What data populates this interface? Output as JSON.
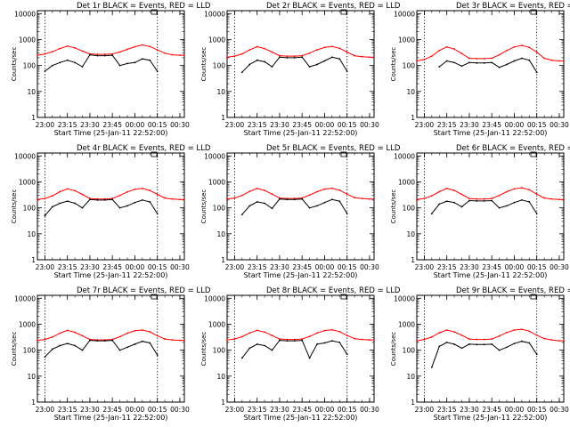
{
  "figure": {
    "xlabel": "Start Time (25-Jan-11 22:52:00)",
    "ylabel": "Counts/sec",
    "x_tick_labels": [
      "23:00",
      "23:15",
      "23:30",
      "23:45",
      "00:00",
      "00:15",
      "00:30"
    ],
    "y_tick_labels": [
      "1",
      "10",
      "100",
      "1000",
      "10000"
    ],
    "colors": {
      "events": "#000000",
      "lld": "#ff0000",
      "axes": "#000000"
    }
  },
  "chart_data": [
    {
      "type": "line",
      "title": "Det 1r BLACK = Events, RED = LLD",
      "x": [
        "22:55",
        "23:00",
        "23:05",
        "23:10",
        "23:15",
        "23:20",
        "23:25",
        "23:30",
        "23:35",
        "23:40",
        "23:45",
        "23:50",
        "23:55",
        "00:00",
        "00:05",
        "00:10",
        "00:15",
        "00:20",
        "00:25",
        "00:30",
        "00:33"
      ],
      "ylim": [
        1,
        13000
      ],
      "yscale": "log",
      "series": [
        {
          "values": [
            250,
            280,
            340,
            450,
            560,
            480,
            360,
            280,
            270,
            270,
            280,
            330,
            420,
            530,
            620,
            540,
            400,
            300,
            260,
            250,
            250
          ]
        },
        {
          "values": [
            null,
            60,
            100,
            130,
            160,
            130,
            90,
            260,
            240,
            240,
            250,
            100,
            120,
            130,
            180,
            160,
            60,
            null,
            null,
            null,
            null
          ]
        }
      ]
    },
    {
      "type": "line",
      "title": "Det 2r BLACK = Events, RED = LLD",
      "x": [
        "22:55",
        "23:00",
        "23:05",
        "23:10",
        "23:15",
        "23:20",
        "23:25",
        "23:30",
        "23:35",
        "23:40",
        "23:45",
        "23:50",
        "23:55",
        "00:00",
        "00:05",
        "00:10",
        "00:15",
        "00:20",
        "00:25",
        "00:30",
        "00:33"
      ],
      "ylim": [
        1,
        13000
      ],
      "yscale": "log",
      "series": [
        {
          "values": [
            210,
            230,
            280,
            400,
            530,
            450,
            330,
            240,
            230,
            230,
            240,
            300,
            400,
            500,
            540,
            460,
            330,
            240,
            220,
            210,
            210
          ]
        },
        {
          "values": [
            null,
            null,
            55,
            110,
            160,
            140,
            90,
            210,
            200,
            200,
            210,
            90,
            110,
            150,
            210,
            180,
            60,
            null,
            null,
            null,
            null
          ]
        }
      ]
    },
    {
      "type": "line",
      "title": "Det 3r BLACK = Events, RED = LLD",
      "x": [
        "22:55",
        "23:00",
        "23:05",
        "23:10",
        "23:15",
        "23:20",
        "23:25",
        "23:30",
        "23:35",
        "23:40",
        "23:45",
        "23:50",
        "23:55",
        "00:00",
        "00:05",
        "00:10",
        "00:15",
        "00:20",
        "00:25",
        "00:30",
        "00:33"
      ],
      "ylim": [
        1,
        13000
      ],
      "yscale": "log",
      "series": [
        {
          "values": [
            150,
            170,
            230,
            380,
            520,
            430,
            290,
            190,
            185,
            185,
            190,
            260,
            380,
            520,
            600,
            500,
            330,
            190,
            160,
            150,
            150
          ]
        },
        {
          "values": [
            null,
            null,
            null,
            90,
            150,
            130,
            95,
            130,
            125,
            125,
            130,
            85,
            110,
            150,
            190,
            160,
            55,
            null,
            null,
            null,
            null
          ]
        }
      ]
    },
    {
      "type": "line",
      "title": "Det 4r BLACK = Events, RED = LLD",
      "x": [
        "22:55",
        "23:00",
        "23:05",
        "23:10",
        "23:15",
        "23:20",
        "23:25",
        "23:30",
        "23:35",
        "23:40",
        "23:45",
        "23:50",
        "23:55",
        "00:00",
        "00:05",
        "00:10",
        "00:15",
        "00:20",
        "00:25",
        "00:30",
        "00:33"
      ],
      "ylim": [
        1,
        13000
      ],
      "yscale": "log",
      "series": [
        {
          "values": [
            210,
            230,
            290,
            420,
            540,
            460,
            330,
            230,
            220,
            220,
            230,
            300,
            410,
            520,
            560,
            470,
            330,
            240,
            220,
            210,
            210
          ]
        },
        {
          "values": [
            null,
            50,
            110,
            150,
            180,
            150,
            100,
            210,
            200,
            200,
            210,
            100,
            120,
            160,
            200,
            170,
            60,
            null,
            null,
            null,
            null
          ]
        }
      ]
    },
    {
      "type": "line",
      "title": "Det 5r BLACK = Events, RED = LLD",
      "x": [
        "22:55",
        "23:00",
        "23:05",
        "23:10",
        "23:15",
        "23:20",
        "23:25",
        "23:30",
        "23:35",
        "23:40",
        "23:45",
        "23:50",
        "23:55",
        "00:00",
        "00:05",
        "00:10",
        "00:15",
        "00:20",
        "00:25",
        "00:30",
        "00:33"
      ],
      "ylim": [
        1,
        13000
      ],
      "yscale": "log",
      "series": [
        {
          "values": [
            220,
            240,
            300,
            430,
            560,
            470,
            340,
            240,
            230,
            230,
            240,
            310,
            420,
            530,
            570,
            480,
            340,
            250,
            230,
            220,
            220
          ]
        },
        {
          "values": [
            null,
            null,
            55,
            120,
            170,
            150,
            95,
            220,
            210,
            210,
            220,
            100,
            120,
            160,
            210,
            180,
            60,
            null,
            null,
            null,
            null
          ]
        }
      ]
    },
    {
      "type": "line",
      "title": "Det 6r BLACK = Events, RED = LLD",
      "x": [
        "22:55",
        "23:00",
        "23:05",
        "23:10",
        "23:15",
        "23:20",
        "23:25",
        "23:30",
        "23:35",
        "23:40",
        "23:45",
        "23:50",
        "23:55",
        "00:00",
        "00:05",
        "00:10",
        "00:15",
        "00:20",
        "00:25",
        "00:30",
        "00:33"
      ],
      "ylim": [
        1,
        13000
      ],
      "yscale": "log",
      "series": [
        {
          "values": [
            210,
            230,
            290,
            420,
            560,
            470,
            330,
            230,
            220,
            220,
            230,
            300,
            420,
            540,
            600,
            500,
            340,
            240,
            220,
            210,
            210
          ]
        },
        {
          "values": [
            null,
            null,
            60,
            140,
            180,
            160,
            110,
            190,
            185,
            185,
            190,
            100,
            120,
            160,
            200,
            170,
            60,
            null,
            null,
            null,
            null
          ]
        }
      ]
    },
    {
      "type": "line",
      "title": "Det 7r BLACK = Events, RED = LLD",
      "x": [
        "22:55",
        "23:00",
        "23:05",
        "23:10",
        "23:15",
        "23:20",
        "23:25",
        "23:30",
        "23:35",
        "23:40",
        "23:45",
        "23:50",
        "23:55",
        "00:00",
        "00:05",
        "00:10",
        "00:15",
        "00:20",
        "00:25",
        "00:30",
        "00:33"
      ],
      "ylim": [
        1,
        13000
      ],
      "yscale": "log",
      "series": [
        {
          "values": [
            240,
            260,
            320,
            450,
            580,
            490,
            360,
            260,
            250,
            250,
            260,
            330,
            450,
            560,
            600,
            510,
            360,
            270,
            250,
            240,
            240
          ]
        },
        {
          "values": [
            null,
            55,
            110,
            150,
            180,
            150,
            100,
            240,
            230,
            230,
            240,
            100,
            130,
            170,
            220,
            190,
            65,
            null,
            null,
            null,
            null
          ]
        }
      ]
    },
    {
      "type": "line",
      "title": "Det 8r BLACK = Events, RED = LLD",
      "x": [
        "22:55",
        "23:00",
        "23:05",
        "23:10",
        "23:15",
        "23:20",
        "23:25",
        "23:30",
        "23:35",
        "23:40",
        "23:45",
        "23:50",
        "23:55",
        "00:00",
        "00:05",
        "00:10",
        "00:15",
        "00:20",
        "00:25",
        "00:30",
        "00:33"
      ],
      "ylim": [
        1,
        13000
      ],
      "yscale": "log",
      "series": [
        {
          "values": [
            250,
            270,
            330,
            460,
            580,
            500,
            370,
            270,
            260,
            260,
            270,
            340,
            460,
            570,
            610,
            520,
            370,
            280,
            260,
            250,
            250
          ]
        },
        {
          "values": [
            null,
            null,
            50,
            120,
            170,
            150,
            100,
            240,
            230,
            230,
            240,
            50,
            170,
            190,
            230,
            200,
            70,
            null,
            null,
            null,
            null
          ]
        }
      ]
    },
    {
      "type": "line",
      "title": "Det 9r BLACK = Events, RED = LLD",
      "x": [
        "22:55",
        "23:00",
        "23:05",
        "23:10",
        "23:15",
        "23:20",
        "23:25",
        "23:30",
        "23:35",
        "23:40",
        "23:45",
        "23:50",
        "23:55",
        "00:00",
        "00:05",
        "00:10",
        "00:15",
        "00:20",
        "00:25",
        "00:30",
        "00:33"
      ],
      "ylim": [
        1,
        13000
      ],
      "yscale": "log",
      "series": [
        {
          "values": [
            230,
            260,
            320,
            470,
            600,
            510,
            380,
            270,
            260,
            260,
            270,
            350,
            480,
            600,
            640,
            540,
            380,
            280,
            250,
            230,
            230
          ]
        },
        {
          "values": [
            null,
            null,
            22,
            140,
            200,
            170,
            120,
            170,
            165,
            165,
            170,
            100,
            130,
            180,
            220,
            190,
            70,
            null,
            null,
            null,
            null
          ]
        }
      ]
    }
  ]
}
